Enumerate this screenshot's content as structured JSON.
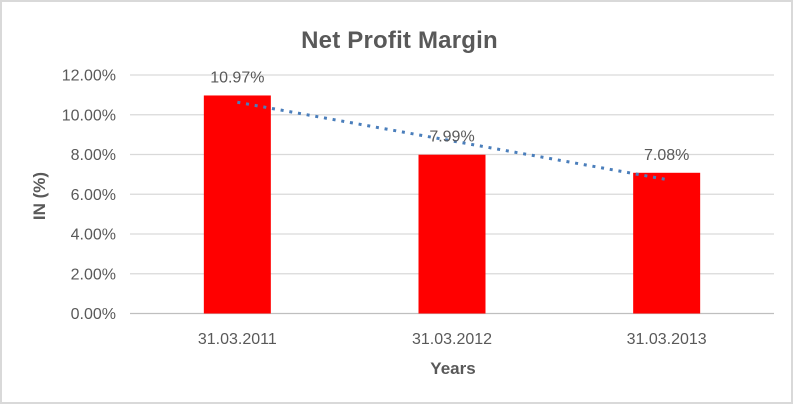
{
  "chart_data": {
    "type": "bar",
    "title": "Net Profit Margin",
    "xlabel": "Years",
    "ylabel": "IN (%)",
    "categories": [
      "31.03.2011",
      "31.03.2012",
      "31.03.2013"
    ],
    "values": [
      10.97,
      7.99,
      7.08
    ],
    "data_labels": [
      "10.97%",
      "7.99%",
      "7.08%"
    ],
    "y_ticks": [
      "0.00%",
      "2.00%",
      "4.00%",
      "6.00%",
      "8.00%",
      "10.00%",
      "12.00%"
    ],
    "y_tick_step": 2,
    "ylim": [
      0,
      12
    ],
    "grid": true,
    "legend": false,
    "bar_color": "#FF0000",
    "trendline": {
      "type": "linear",
      "style": "dotted",
      "color": "#4A7EBB",
      "start_value": 10.63,
      "end_value": 6.74
    },
    "text_color": "#595959",
    "gridline_color": "#D9D9D9",
    "axis_line_color": "#BFBFBF",
    "frame_border_color": "#D9D9D9"
  }
}
